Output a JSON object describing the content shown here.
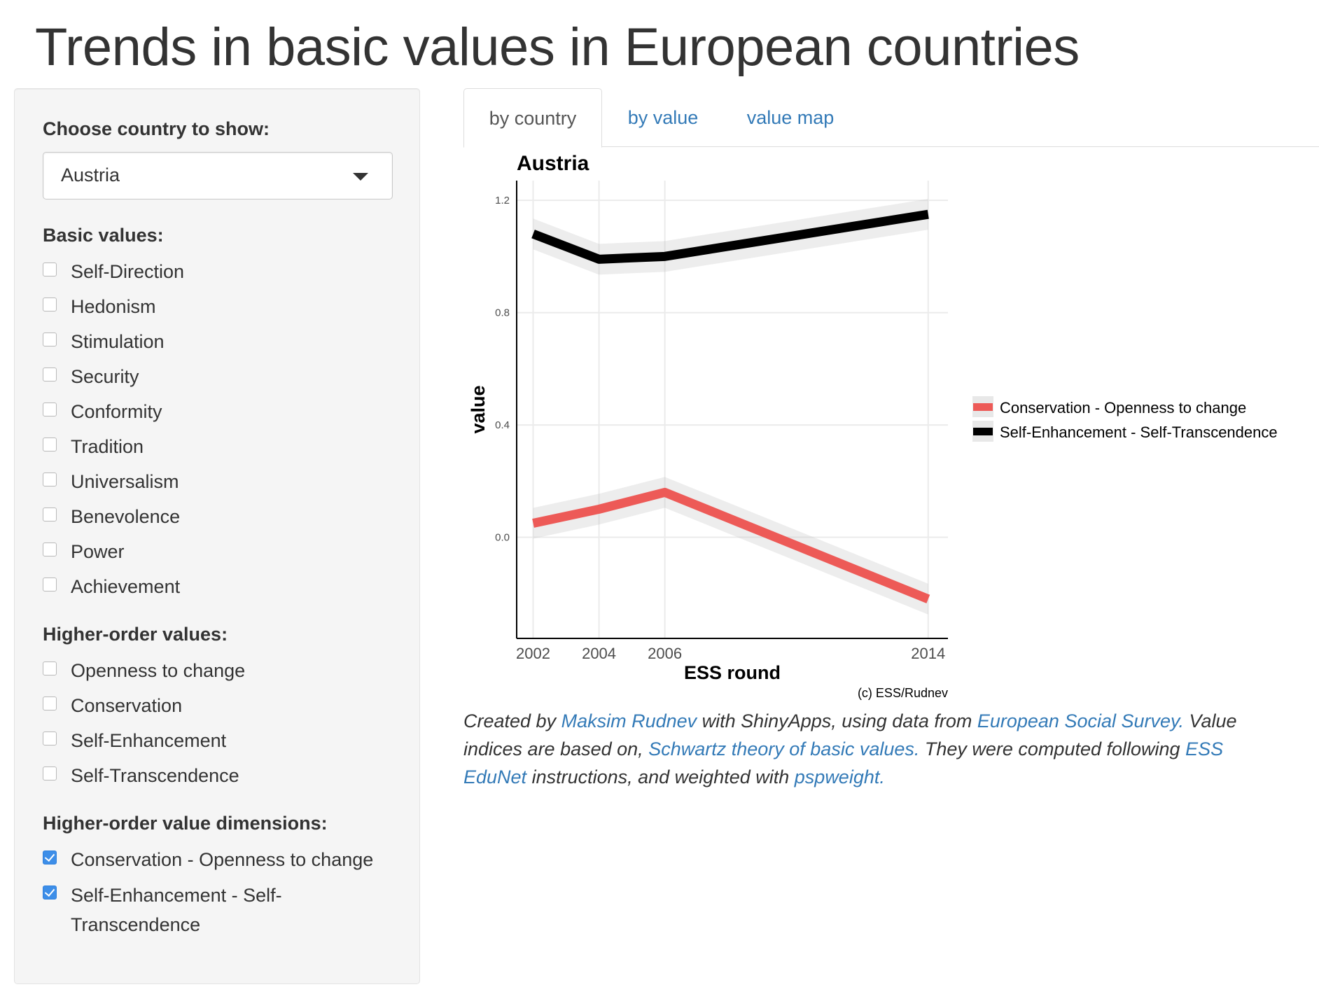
{
  "page": {
    "title": "Trends in basic values in European countries"
  },
  "sidebar": {
    "country_label": "Choose country to show:",
    "country_selected": "Austria",
    "basic_values": {
      "label": "Basic values:",
      "items": [
        {
          "label": "Self-Direction",
          "checked": false
        },
        {
          "label": "Hedonism",
          "checked": false
        },
        {
          "label": "Stimulation",
          "checked": false
        },
        {
          "label": "Security",
          "checked": false
        },
        {
          "label": "Conformity",
          "checked": false
        },
        {
          "label": "Tradition",
          "checked": false
        },
        {
          "label": "Universalism",
          "checked": false
        },
        {
          "label": "Benevolence",
          "checked": false
        },
        {
          "label": "Power",
          "checked": false
        },
        {
          "label": "Achievement",
          "checked": false
        }
      ]
    },
    "higher_order": {
      "label": "Higher-order values:",
      "items": [
        {
          "label": "Openness to change",
          "checked": false
        },
        {
          "label": "Conservation",
          "checked": false
        },
        {
          "label": "Self-Enhancement",
          "checked": false
        },
        {
          "label": "Self-Transcendence",
          "checked": false
        }
      ]
    },
    "dimensions": {
      "label": "Higher-order value dimensions:",
      "items": [
        {
          "label": "Conservation - Openness to change",
          "checked": true
        },
        {
          "label": "Self-Enhancement - Self-Transcendence",
          "checked": true
        }
      ]
    }
  },
  "tabs": [
    {
      "label": "by country",
      "active": true
    },
    {
      "label": "by value",
      "active": false
    },
    {
      "label": "value map",
      "active": false
    }
  ],
  "chart_data": {
    "type": "line",
    "title": "Austria",
    "xlabel": "ESS round",
    "ylabel": "value",
    "x": [
      2002,
      2004,
      2006,
      2014
    ],
    "xticks": [
      "2002",
      "2004",
      "2006",
      "2014"
    ],
    "yticks": [
      0.0,
      0.4,
      0.8,
      1.2
    ],
    "ytick_labels": [
      "0.0",
      "0.4",
      "0.8",
      "1.2"
    ],
    "xlim": [
      2001.5,
      2014.6
    ],
    "ylim": [
      -0.36,
      1.27
    ],
    "grid": true,
    "legend": "right",
    "caption": "(c) ESS/Rudnev",
    "series": [
      {
        "name": "Conservation - Openness to change",
        "color": "#ed5a57",
        "values": [
          0.05,
          0.1,
          0.16,
          -0.22
        ]
      },
      {
        "name": "Self-Enhancement - Self-Transcendence",
        "color": "#000000",
        "values": [
          1.08,
          0.99,
          1.0,
          1.15
        ]
      }
    ]
  },
  "caption": {
    "t1": "Created by ",
    "link1": "Maksim Rudnev",
    "t2": " with ShinyApps, using data from ",
    "link2": "European Social Survey.",
    "t3": " Value indices are based on, ",
    "link3": "Schwartz theory of basic values.",
    "t4": " They were computed following ",
    "link4": "ESS EduNet",
    "t5": " instructions, and weighted with ",
    "link5": "pspweight."
  }
}
